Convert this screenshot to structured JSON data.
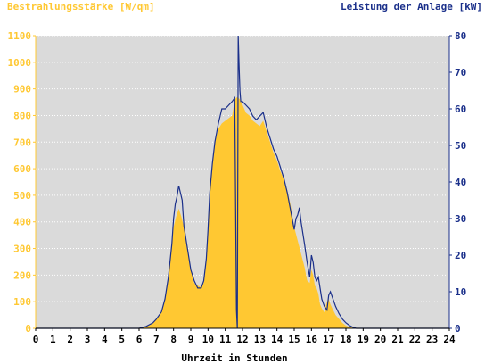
{
  "colors": {
    "irradiance": "#FFC832",
    "power": "#1A2F8A",
    "plot_bg": "#DADADA",
    "left_axis_text": "#FFC832",
    "right_axis_text": "#1A2F8A",
    "grid": "#FFFFFF",
    "x_axis_text": "#000000"
  },
  "chart_data": {
    "type": "area",
    "title_left": "Bestrahlungsstärke [W/qm]",
    "title_right": "Leistung der Anlage [kW]",
    "xlabel": "Uhrzeit in Stunden",
    "xlim": [
      0,
      24
    ],
    "x_ticks": [
      "0",
      "1",
      "2",
      "3",
      "4",
      "5",
      "6",
      "7",
      "8",
      "9",
      "10",
      "11",
      "12",
      "13",
      "14",
      "15",
      "16",
      "17",
      "18",
      "19",
      "20",
      "21",
      "22",
      "23",
      "24"
    ],
    "y_left_lim": [
      0,
      1100
    ],
    "y_left_ticks": [
      "0",
      "100",
      "200",
      "300",
      "400",
      "500",
      "600",
      "700",
      "800",
      "900",
      "1000",
      "1100"
    ],
    "y_right_lim": [
      0,
      80
    ],
    "y_right_ticks": [
      "0",
      "10",
      "20",
      "30",
      "40",
      "50",
      "60",
      "70",
      "80"
    ],
    "grid": "horizontal",
    "series": [
      {
        "name": "Bestrahlungsstärke [W/qm]",
        "axis": "left",
        "style": "filled-area",
        "x": [
          0,
          6.0,
          6.4,
          6.8,
          7.0,
          7.3,
          7.5,
          7.7,
          7.9,
          8.0,
          8.15,
          8.3,
          8.45,
          8.6,
          8.8,
          9.0,
          9.2,
          9.4,
          9.6,
          9.75,
          9.9,
          10.0,
          10.1,
          10.25,
          10.4,
          10.6,
          10.8,
          11.0,
          11.2,
          11.4,
          11.55,
          11.7,
          11.85,
          12.0,
          12.2,
          12.4,
          12.6,
          12.8,
          13.0,
          13.2,
          13.4,
          13.6,
          13.8,
          14.0,
          14.2,
          14.4,
          14.6,
          14.8,
          15.0,
          15.2,
          15.4,
          15.6,
          15.75,
          15.9,
          16.0,
          16.1,
          16.2,
          16.3,
          16.4,
          16.5,
          16.6,
          16.75,
          16.9,
          17.0,
          17.1,
          17.25,
          17.4,
          17.6,
          17.8,
          18.0,
          18.2,
          18.4,
          18.6,
          18.8,
          19.0,
          24
        ],
        "y": [
          0,
          0,
          5,
          20,
          35,
          60,
          110,
          200,
          320,
          380,
          420,
          450,
          420,
          380,
          300,
          220,
          170,
          160,
          155,
          170,
          250,
          350,
          500,
          620,
          700,
          750,
          770,
          780,
          790,
          800,
          860,
          870,
          860,
          840,
          810,
          800,
          780,
          770,
          760,
          780,
          740,
          700,
          660,
          630,
          590,
          560,
          520,
          460,
          380,
          330,
          280,
          230,
          180,
          170,
          220,
          200,
          160,
          150,
          130,
          90,
          75,
          60,
          100,
          110,
          90,
          70,
          50,
          35,
          20,
          10,
          5,
          2,
          0,
          0,
          0,
          0
        ]
      },
      {
        "name": "Leistung der Anlage [kW]",
        "axis": "right",
        "style": "line",
        "x": [
          0,
          6.0,
          6.4,
          6.8,
          7.0,
          7.3,
          7.5,
          7.7,
          7.9,
          8.0,
          8.1,
          8.2,
          8.3,
          8.4,
          8.5,
          8.6,
          8.8,
          9.0,
          9.2,
          9.4,
          9.6,
          9.75,
          9.9,
          10.0,
          10.1,
          10.25,
          10.4,
          10.6,
          10.8,
          11.0,
          11.2,
          11.4,
          11.55,
          11.65,
          11.7,
          11.75,
          11.8,
          11.85,
          11.9,
          12.0,
          12.2,
          12.4,
          12.6,
          12.8,
          13.0,
          13.2,
          13.4,
          13.6,
          13.8,
          14.0,
          14.2,
          14.4,
          14.6,
          14.8,
          15.0,
          15.1,
          15.2,
          15.3,
          15.4,
          15.6,
          15.75,
          15.9,
          16.0,
          16.1,
          16.2,
          16.3,
          16.4,
          16.5,
          16.6,
          16.75,
          16.9,
          17.0,
          17.1,
          17.25,
          17.4,
          17.6,
          17.8,
          18.0,
          18.2,
          18.4,
          18.6,
          18.8,
          19.0,
          24
        ],
        "y": [
          0,
          0,
          0.5,
          1.5,
          2.5,
          4.5,
          8,
          14,
          23,
          30,
          34,
          36,
          39,
          37,
          35,
          28,
          22,
          16,
          13,
          11,
          11,
          13,
          19,
          27,
          37,
          45,
          51,
          56,
          60,
          60,
          61,
          62,
          63,
          5,
          0,
          80,
          72,
          65,
          62,
          62,
          61,
          60,
          58,
          57,
          58,
          59,
          55,
          52,
          49,
          47,
          44,
          41,
          37,
          32,
          27,
          30,
          31,
          33,
          29,
          23,
          18,
          14,
          20,
          18,
          14,
          13,
          14,
          11,
          8,
          6,
          5,
          9,
          10,
          8,
          6,
          4,
          2.5,
          1.5,
          0.8,
          0.3,
          0,
          0,
          0,
          0
        ]
      }
    ]
  }
}
